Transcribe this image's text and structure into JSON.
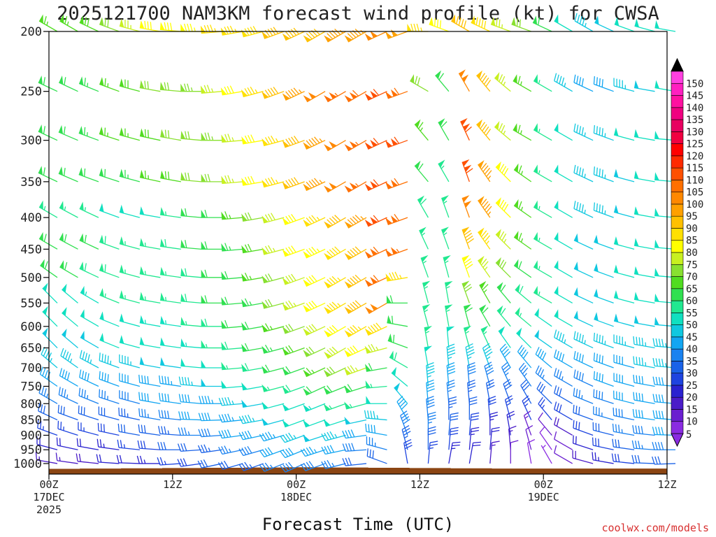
{
  "chart_data": {
    "type": "wind-barb-time-height",
    "title": "2025121700 NAM3KM forecast wind profile (kt) for CWSA",
    "xlabel": "Forecast Time (UTC)",
    "credit": "coolwx.com/models",
    "y_axis": {
      "scale": "pressure (reversed)",
      "range": [
        1040,
        200
      ],
      "ticks": [
        200,
        250,
        300,
        350,
        400,
        450,
        500,
        550,
        600,
        650,
        700,
        750,
        800,
        850,
        900,
        950,
        1000
      ]
    },
    "x_axis": {
      "range_hours": [
        0,
        60
      ],
      "ticks": [
        {
          "hour": 0,
          "line1": "00Z",
          "line2": "17DEC",
          "line3": "2025"
        },
        {
          "hour": 12,
          "line1": "12Z",
          "line2": "",
          "line3": ""
        },
        {
          "hour": 24,
          "line1": "00Z",
          "line2": "18DEC",
          "line3": ""
        },
        {
          "hour": 36,
          "line1": "12Z",
          "line2": "",
          "line3": ""
        },
        {
          "hour": 48,
          "line1": "00Z",
          "line2": "19DEC",
          "line3": ""
        },
        {
          "hour": 60,
          "line1": "12Z",
          "line2": "",
          "line3": ""
        }
      ]
    },
    "colorbar": {
      "levels": [
        5,
        10,
        15,
        20,
        25,
        30,
        35,
        40,
        45,
        50,
        55,
        60,
        65,
        70,
        75,
        80,
        85,
        90,
        95,
        100,
        105,
        110,
        115,
        120,
        125,
        130,
        135,
        140,
        145,
        150
      ],
      "colors": [
        "#8a2be2",
        "#6a1fd0",
        "#4b1cc8",
        "#2a22d0",
        "#1e44e0",
        "#1a62e8",
        "#1a82f0",
        "#12a6f2",
        "#10c8e0",
        "#10e0c0",
        "#20e890",
        "#30e050",
        "#50dc20",
        "#88e030",
        "#c8f020",
        "#ffff00",
        "#ffe000",
        "#ffc000",
        "#ffa000",
        "#ff8800",
        "#ff7000",
        "#ff5000",
        "#ff2a00",
        "#ff0000",
        "#f00040",
        "#e80060",
        "#f00080",
        "#ff10a0",
        "#ff20c0",
        "#ff40e0"
      ]
    },
    "hours": [
      0,
      2,
      4,
      6,
      8,
      10,
      12,
      14,
      16,
      18,
      20,
      22,
      24,
      26,
      28,
      30,
      32,
      34,
      36,
      38,
      40,
      42,
      44,
      46,
      48,
      50,
      52,
      54,
      56,
      58,
      60
    ],
    "levels": [
      200,
      250,
      300,
      350,
      400,
      450,
      500,
      550,
      600,
      650,
      700,
      750,
      800,
      850,
      900,
      950,
      1000
    ],
    "terrain_pressure": [
      1020,
      1020,
      1019,
      1019,
      1018,
      1018,
      1017,
      1017,
      1016,
      1016,
      1015,
      1015,
      1014,
      1014,
      1015,
      1015,
      1016,
      1016,
      1017,
      1017,
      1018,
      1018,
      1019,
      1019,
      1019,
      1019,
      1019,
      1019,
      1019,
      1019,
      1019
    ],
    "wind_speed_kt": [
      [
        65,
        65,
        68,
        72,
        75,
        80,
        82,
        84,
        85,
        86,
        88,
        90,
        90,
        92,
        95,
        97,
        100,
        98,
        85,
        80,
        90,
        88,
        75,
        70,
        60,
        50,
        45,
        48,
        50,
        50,
        50
      ],
      [
        60,
        62,
        64,
        66,
        68,
        70,
        72,
        74,
        76,
        80,
        85,
        90,
        95,
        100,
        105,
        108,
        110,
        108,
        70,
        60,
        100,
        90,
        75,
        65,
        55,
        45,
        40,
        42,
        45,
        48,
        50
      ],
      [
        60,
        62,
        64,
        65,
        66,
        68,
        70,
        72,
        74,
        76,
        80,
        85,
        90,
        95,
        100,
        105,
        112,
        110,
        65,
        60,
        112,
        90,
        75,
        65,
        55,
        50,
        45,
        45,
        50,
        50,
        50
      ],
      [
        60,
        60,
        60,
        62,
        64,
        66,
        68,
        70,
        72,
        75,
        80,
        85,
        90,
        95,
        100,
        105,
        110,
        108,
        60,
        55,
        110,
        95,
        80,
        65,
        55,
        50,
        45,
        45,
        48,
        50,
        50
      ],
      [
        55,
        55,
        55,
        52,
        50,
        50,
        55,
        60,
        62,
        65,
        72,
        78,
        80,
        85,
        90,
        95,
        110,
        108,
        58,
        55,
        100,
        95,
        80,
        65,
        55,
        50,
        45,
        45,
        48,
        50,
        50
      ],
      [
        60,
        60,
        60,
        58,
        56,
        56,
        58,
        60,
        62,
        64,
        68,
        75,
        80,
        84,
        88,
        92,
        108,
        106,
        56,
        55,
        90,
        85,
        75,
        65,
        55,
        50,
        48,
        48,
        50,
        50,
        50
      ],
      [
        60,
        60,
        58,
        58,
        56,
        56,
        56,
        58,
        60,
        62,
        66,
        72,
        78,
        82,
        86,
        90,
        108,
        85,
        55,
        55,
        80,
        75,
        70,
        62,
        55,
        50,
        48,
        48,
        50,
        50,
        50
      ],
      [
        50,
        52,
        54,
        56,
        56,
        56,
        56,
        58,
        60,
        62,
        64,
        70,
        75,
        80,
        85,
        90,
        100,
        60,
        55,
        55,
        70,
        65,
        60,
        58,
        55,
        50,
        48,
        48,
        50,
        50,
        50
      ],
      [
        50,
        50,
        50,
        52,
        52,
        54,
        54,
        56,
        58,
        60,
        62,
        66,
        72,
        78,
        82,
        86,
        88,
        62,
        55,
        55,
        62,
        60,
        58,
        55,
        52,
        50,
        48,
        48,
        48,
        48,
        48
      ],
      [
        48,
        48,
        48,
        50,
        50,
        52,
        52,
        54,
        56,
        58,
        60,
        64,
        68,
        72,
        78,
        82,
        75,
        60,
        55,
        50,
        55,
        55,
        52,
        50,
        48,
        46,
        45,
        45,
        45,
        45,
        45
      ],
      [
        45,
        45,
        45,
        45,
        46,
        48,
        48,
        50,
        52,
        55,
        58,
        60,
        62,
        65,
        70,
        75,
        62,
        58,
        50,
        45,
        45,
        45,
        42,
        42,
        40,
        40,
        40,
        42,
        42,
        45,
        45
      ],
      [
        40,
        40,
        40,
        40,
        42,
        42,
        44,
        46,
        48,
        50,
        52,
        55,
        58,
        60,
        62,
        62,
        55,
        52,
        45,
        40,
        38,
        38,
        36,
        35,
        35,
        35,
        38,
        40,
        40,
        42,
        42
      ],
      [
        35,
        35,
        35,
        36,
        38,
        40,
        40,
        42,
        44,
        46,
        48,
        50,
        52,
        54,
        56,
        55,
        50,
        48,
        40,
        36,
        34,
        32,
        30,
        30,
        30,
        30,
        35,
        38,
        40,
        40,
        40
      ],
      [
        30,
        30,
        30,
        32,
        34,
        36,
        38,
        40,
        42,
        44,
        46,
        48,
        50,
        52,
        50,
        48,
        45,
        42,
        38,
        34,
        30,
        28,
        26,
        26,
        26,
        28,
        32,
        36,
        38,
        40,
        40
      ],
      [
        25,
        25,
        25,
        28,
        30,
        32,
        34,
        36,
        38,
        40,
        42,
        44,
        46,
        48,
        45,
        42,
        40,
        38,
        35,
        30,
        28,
        24,
        20,
        14,
        12,
        18,
        28,
        32,
        36,
        38,
        40
      ],
      [
        20,
        20,
        22,
        24,
        26,
        28,
        30,
        32,
        34,
        36,
        38,
        40,
        42,
        44,
        40,
        38,
        36,
        34,
        30,
        28,
        24,
        20,
        15,
        10,
        8,
        12,
        22,
        28,
        32,
        36,
        38
      ],
      [
        15,
        15,
        18,
        20,
        22,
        24,
        26,
        28,
        30,
        32,
        34,
        36,
        38,
        38,
        35,
        32,
        30,
        28,
        26,
        24,
        20,
        16,
        12,
        8,
        6,
        10,
        18,
        24,
        28,
        30,
        32
      ]
    ],
    "wind_dir_deg": [
      [
        300,
        300,
        295,
        290,
        285,
        280,
        275,
        270,
        265,
        260,
        255,
        250,
        245,
        240,
        240,
        240,
        245,
        250,
        270,
        290,
        300,
        295,
        290,
        290,
        295,
        300,
        300,
        295,
        290,
        285,
        280
      ],
      [
        295,
        295,
        292,
        290,
        285,
        280,
        275,
        270,
        265,
        260,
        255,
        250,
        245,
        240,
        240,
        240,
        245,
        250,
        300,
        320,
        330,
        320,
        310,
        300,
        300,
        300,
        295,
        290,
        285,
        280,
        280
      ],
      [
        295,
        293,
        290,
        288,
        285,
        282,
        280,
        275,
        270,
        265,
        260,
        255,
        250,
        245,
        240,
        240,
        245,
        250,
        320,
        330,
        335,
        320,
        310,
        300,
        300,
        300,
        295,
        290,
        285,
        280,
        275
      ],
      [
        295,
        293,
        290,
        288,
        285,
        282,
        280,
        275,
        270,
        265,
        260,
        255,
        250,
        245,
        240,
        240,
        245,
        250,
        320,
        330,
        340,
        325,
        315,
        305,
        300,
        300,
        295,
        290,
        285,
        280,
        275
      ],
      [
        300,
        298,
        295,
        290,
        285,
        280,
        278,
        275,
        270,
        265,
        260,
        255,
        250,
        245,
        240,
        240,
        245,
        250,
        330,
        340,
        340,
        325,
        315,
        305,
        300,
        300,
        295,
        290,
        285,
        280,
        275
      ],
      [
        300,
        298,
        295,
        290,
        285,
        280,
        278,
        275,
        270,
        265,
        260,
        255,
        250,
        245,
        240,
        240,
        245,
        250,
        335,
        340,
        340,
        325,
        315,
        305,
        300,
        300,
        295,
        290,
        285,
        280,
        275
      ],
      [
        305,
        300,
        295,
        290,
        285,
        280,
        278,
        275,
        270,
        265,
        260,
        255,
        250,
        245,
        240,
        240,
        245,
        260,
        340,
        345,
        340,
        325,
        315,
        305,
        300,
        300,
        295,
        290,
        285,
        280,
        275
      ],
      [
        315,
        310,
        300,
        292,
        285,
        280,
        278,
        275,
        270,
        265,
        260,
        255,
        250,
        245,
        240,
        240,
        240,
        270,
        345,
        350,
        340,
        330,
        320,
        310,
        300,
        300,
        295,
        290,
        285,
        280,
        275
      ],
      [
        315,
        310,
        300,
        292,
        285,
        280,
        278,
        275,
        270,
        265,
        260,
        255,
        250,
        245,
        240,
        240,
        245,
        280,
        345,
        350,
        345,
        330,
        320,
        310,
        305,
        300,
        295,
        290,
        285,
        280,
        275
      ],
      [
        315,
        310,
        300,
        292,
        285,
        280,
        278,
        275,
        270,
        265,
        260,
        255,
        250,
        245,
        240,
        245,
        255,
        290,
        350,
        355,
        345,
        335,
        325,
        315,
        305,
        300,
        295,
        290,
        285,
        280,
        275
      ],
      [
        310,
        305,
        298,
        290,
        285,
        280,
        278,
        275,
        270,
        265,
        260,
        255,
        250,
        245,
        245,
        250,
        260,
        300,
        350,
        355,
        350,
        340,
        330,
        320,
        310,
        300,
        295,
        290,
        285,
        280,
        275
      ],
      [
        305,
        300,
        295,
        290,
        285,
        280,
        278,
        275,
        270,
        265,
        260,
        255,
        250,
        245,
        248,
        252,
        265,
        310,
        355,
        355,
        355,
        345,
        335,
        325,
        310,
        300,
        295,
        290,
        285,
        280,
        275
      ],
      [
        300,
        295,
        292,
        288,
        285,
        280,
        278,
        275,
        270,
        265,
        260,
        255,
        250,
        248,
        250,
        255,
        270,
        320,
        355,
        355,
        355,
        350,
        340,
        330,
        315,
        300,
        292,
        288,
        284,
        280,
        275
      ],
      [
        295,
        290,
        288,
        285,
        282,
        280,
        276,
        272,
        268,
        264,
        260,
        255,
        250,
        250,
        252,
        258,
        275,
        330,
        355,
        0,
        0,
        355,
        345,
        335,
        320,
        300,
        290,
        286,
        282,
        278,
        275
      ],
      [
        290,
        288,
        285,
        282,
        280,
        278,
        274,
        270,
        266,
        262,
        258,
        254,
        250,
        252,
        255,
        262,
        280,
        340,
        0,
        5,
        5,
        0,
        350,
        340,
        320,
        300,
        290,
        284,
        280,
        276,
        272
      ],
      [
        285,
        282,
        280,
        278,
        276,
        274,
        270,
        266,
        262,
        258,
        254,
        250,
        248,
        252,
        258,
        266,
        285,
        345,
        0,
        5,
        5,
        5,
        355,
        345,
        325,
        300,
        288,
        282,
        278,
        274,
        270
      ],
      [
        280,
        278,
        276,
        274,
        272,
        270,
        266,
        262,
        258,
        254,
        250,
        248,
        246,
        250,
        256,
        264,
        290,
        350,
        5,
        10,
        10,
        5,
        0,
        350,
        330,
        300,
        285,
        280,
        276,
        272,
        268
      ]
    ]
  }
}
